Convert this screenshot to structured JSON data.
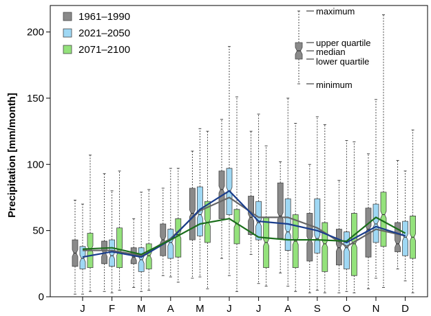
{
  "chart_data": {
    "type": "boxplot",
    "ylabel": "Precipitation [mm/month]",
    "ylim": [
      0,
      220
    ],
    "yticks": [
      0,
      50,
      100,
      150,
      200
    ],
    "categories": [
      "J",
      "F",
      "M",
      "A",
      "M",
      "J",
      "J",
      "A",
      "S",
      "O",
      "N",
      "D"
    ],
    "series": [
      {
        "name": "1961–1990",
        "fill": "#8a8a8a",
        "line": "#666666",
        "boxes": [
          {
            "min": 2,
            "q1": 23,
            "median": 33,
            "q3": 43,
            "max": 73
          },
          {
            "min": 4,
            "q1": 25,
            "median": 33,
            "q3": 42,
            "max": 93
          },
          {
            "min": 7,
            "q1": 25,
            "median": 30,
            "q3": 37,
            "max": 59
          },
          {
            "min": 16,
            "q1": 31,
            "median": 43,
            "q3": 55,
            "max": 82
          },
          {
            "min": 14,
            "q1": 43,
            "median": 63,
            "q3": 82,
            "max": 110
          },
          {
            "min": 29,
            "q1": 59,
            "median": 81,
            "q3": 95,
            "max": 134
          },
          {
            "min": 32,
            "q1": 47,
            "median": 60,
            "q3": 76,
            "max": 125
          },
          {
            "min": 18,
            "q1": 44,
            "median": 61,
            "q3": 86,
            "max": 102
          },
          {
            "min": 3,
            "q1": 27,
            "median": 43,
            "q3": 63,
            "max": 100
          },
          {
            "min": 3,
            "q1": 24,
            "median": 37,
            "q3": 51,
            "max": 88
          },
          {
            "min": 6,
            "q1": 30,
            "median": 51,
            "q3": 67,
            "max": 108
          },
          {
            "min": 21,
            "q1": 34,
            "median": 40,
            "q3": 56,
            "max": 103
          }
        ],
        "means": [
          35,
          35,
          31,
          44,
          65,
          75,
          60,
          60,
          52,
          38,
          51,
          46
        ]
      },
      {
        "name": "2021–2050",
        "fill": "#9fd8f4",
        "line": "#1a3d8c",
        "boxes": [
          {
            "min": 2,
            "q1": 21,
            "median": 29,
            "q3": 38,
            "max": 70
          },
          {
            "min": 3,
            "q1": 23,
            "median": 31,
            "q3": 43,
            "max": 80
          },
          {
            "min": 4,
            "q1": 19,
            "median": 28,
            "q3": 37,
            "max": 79
          },
          {
            "min": 15,
            "q1": 29,
            "median": 41,
            "q3": 51,
            "max": 97
          },
          {
            "min": 15,
            "q1": 46,
            "median": 62,
            "q3": 83,
            "max": 127
          },
          {
            "min": 16,
            "q1": 62,
            "median": 80,
            "q3": 97,
            "max": 189
          },
          {
            "min": 10,
            "q1": 43,
            "median": 56,
            "q3": 72,
            "max": 138
          },
          {
            "min": 8,
            "q1": 35,
            "median": 49,
            "q3": 74,
            "max": 150
          },
          {
            "min": 5,
            "q1": 33,
            "median": 44,
            "q3": 74,
            "max": 136
          },
          {
            "min": 4,
            "q1": 21,
            "median": 37,
            "q3": 49,
            "max": 118
          },
          {
            "min": 14,
            "q1": 41,
            "median": 55,
            "q3": 70,
            "max": 149
          },
          {
            "min": 12,
            "q1": 31,
            "median": 45,
            "q3": 57,
            "max": 95
          }
        ],
        "means": [
          30,
          34,
          30,
          43,
          66,
          80,
          57,
          55,
          50,
          41,
          53,
          46
        ]
      },
      {
        "name": "2071–2100",
        "fill": "#94e27c",
        "line": "#1b6e1b",
        "boxes": [
          {
            "min": 4,
            "q1": 22,
            "median": 36,
            "q3": 48,
            "max": 107
          },
          {
            "min": 5,
            "q1": 22,
            "median": 34,
            "q3": 52,
            "max": 95
          },
          {
            "min": 5,
            "q1": 21,
            "median": 31,
            "q3": 40,
            "max": 81
          },
          {
            "min": 11,
            "q1": 30,
            "median": 47,
            "q3": 59,
            "max": 97
          },
          {
            "min": 6,
            "q1": 41,
            "median": 56,
            "q3": 72,
            "max": 125
          },
          {
            "min": 4,
            "q1": 40,
            "median": 55,
            "q3": 66,
            "max": 151
          },
          {
            "min": 8,
            "q1": 22,
            "median": 41,
            "q3": 60,
            "max": 114
          },
          {
            "min": 4,
            "q1": 22,
            "median": 42,
            "q3": 62,
            "max": 131
          },
          {
            "min": 3,
            "q1": 19,
            "median": 40,
            "q3": 56,
            "max": 130
          },
          {
            "min": 3,
            "q1": 16,
            "median": 40,
            "q3": 63,
            "max": 117
          },
          {
            "min": 7,
            "q1": 38,
            "median": 62,
            "q3": 79,
            "max": 213
          },
          {
            "min": 3,
            "q1": 29,
            "median": 45,
            "q3": 61,
            "max": 126
          }
        ],
        "means": [
          36,
          37,
          32,
          43,
          55,
          59,
          45,
          43,
          43,
          42,
          60,
          48
        ]
      }
    ],
    "key": {
      "maximum": "maximum",
      "upper_quartile": "upper quartile",
      "median": "median",
      "lower_quartile": "lower quartile",
      "minimum": "minimum"
    },
    "legend_position": "top-left",
    "grid": false
  }
}
